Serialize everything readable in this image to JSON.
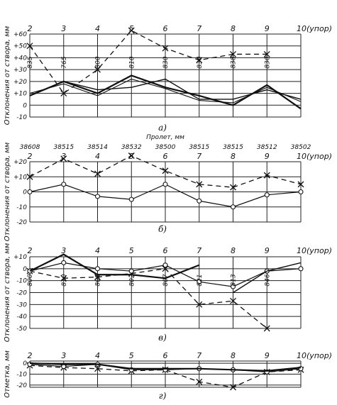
{
  "chart_data": [
    {
      "id": "a",
      "type": "line",
      "caption": "а)",
      "ylabel": "Отклонения от створа, мм",
      "x_labels": [
        "2",
        "3",
        "4",
        "5",
        "6",
        "7",
        "8",
        "9",
        "10(упор)"
      ],
      "y_ticks": [
        60,
        50,
        40,
        30,
        20,
        10,
        0,
        -10
      ],
      "ylim": [
        -10,
        60
      ],
      "value_labels": [
        "835",
        "765",
        "800",
        "810",
        "830",
        "830",
        "838",
        "830"
      ],
      "series": [
        {
          "style": "dashed-cross",
          "values": [
            50,
            10,
            30,
            63,
            48,
            38,
            43,
            43,
            null
          ]
        },
        {
          "style": "solid-1",
          "values": [
            8,
            20,
            10,
            25,
            15,
            8,
            0,
            17,
            -3
          ]
        },
        {
          "style": "solid-2",
          "values": [
            8,
            20,
            13,
            15,
            22,
            5,
            5,
            13,
            5
          ]
        },
        {
          "style": "solid-3",
          "values": [
            10,
            18,
            8,
            22,
            14,
            4,
            2,
            15,
            3
          ]
        }
      ]
    },
    {
      "id": "b",
      "type": "line",
      "caption": "б)",
      "title": "Пролет, мм",
      "ylabel": "Отклонения от створа, мм",
      "x_labels": [
        "2",
        "3",
        "4",
        "5",
        "6",
        "7",
        "8",
        "9",
        "10(упор)"
      ],
      "span_labels": [
        "38608",
        "38515",
        "38514",
        "38532",
        "38500",
        "38515",
        "38515",
        "38512",
        "38502"
      ],
      "y_ticks": [
        20,
        10,
        0,
        -10,
        -20
      ],
      "ylim": [
        -20,
        20
      ],
      "series": [
        {
          "style": "dashed-cross",
          "values": [
            10,
            22,
            12,
            24,
            14,
            5,
            3,
            11,
            5
          ]
        },
        {
          "style": "solid-circle",
          "values": [
            0,
            5,
            -3,
            -5,
            5,
            -6,
            -10,
            -2,
            0
          ]
        }
      ]
    },
    {
      "id": "v",
      "type": "line",
      "caption": "в)",
      "ylabel": "Отклонения от створа, мм",
      "x_labels": [
        "2",
        "3",
        "4",
        "5",
        "6",
        "7",
        "8",
        "9",
        "10(упор)"
      ],
      "y_ticks": [
        10,
        0,
        -10,
        -20,
        -30,
        -40,
        -50
      ],
      "ylim": [
        -50,
        10
      ],
      "value_labels": [
        "800",
        "810",
        "805",
        "802",
        "807",
        "821",
        "813",
        "846"
      ],
      "series": [
        {
          "style": "dashed-cross",
          "values": [
            -2,
            -8,
            -7,
            -4,
            0,
            -30,
            -27,
            -50,
            null
          ]
        },
        {
          "style": "solid-circle",
          "values": [
            -2,
            5,
            0,
            -2,
            3,
            -11,
            -15,
            -2,
            0
          ]
        },
        {
          "style": "solid-1",
          "values": [
            -2,
            12,
            -5,
            -5,
            -8,
            3,
            null,
            null,
            null
          ]
        },
        {
          "style": "solid-2",
          "values": [
            null,
            null,
            null,
            null,
            null,
            null,
            -20,
            -2,
            5
          ]
        }
      ]
    },
    {
      "id": "g",
      "type": "line",
      "caption": "г)",
      "ylabel": "Отметка, мм",
      "x_labels": [
        "2",
        "3",
        "4",
        "5",
        "6",
        "7",
        "8",
        "9",
        "10(упор)"
      ],
      "y_ticks": [
        0,
        -10,
        -20
      ],
      "ylim": [
        -22,
        2
      ],
      "series": [
        {
          "style": "dashed-cross",
          "values": [
            -2,
            -4,
            -5,
            -7,
            -6,
            -17,
            -22,
            -8,
            -6
          ]
        },
        {
          "style": "solid-circle",
          "values": [
            -1,
            -3,
            -1,
            -6,
            -6,
            -5,
            -6,
            -8,
            -5
          ]
        },
        {
          "style": "solid-1",
          "values": [
            0,
            -1,
            -1,
            -5,
            -5,
            -5,
            -6,
            -7,
            -4
          ]
        }
      ]
    }
  ]
}
